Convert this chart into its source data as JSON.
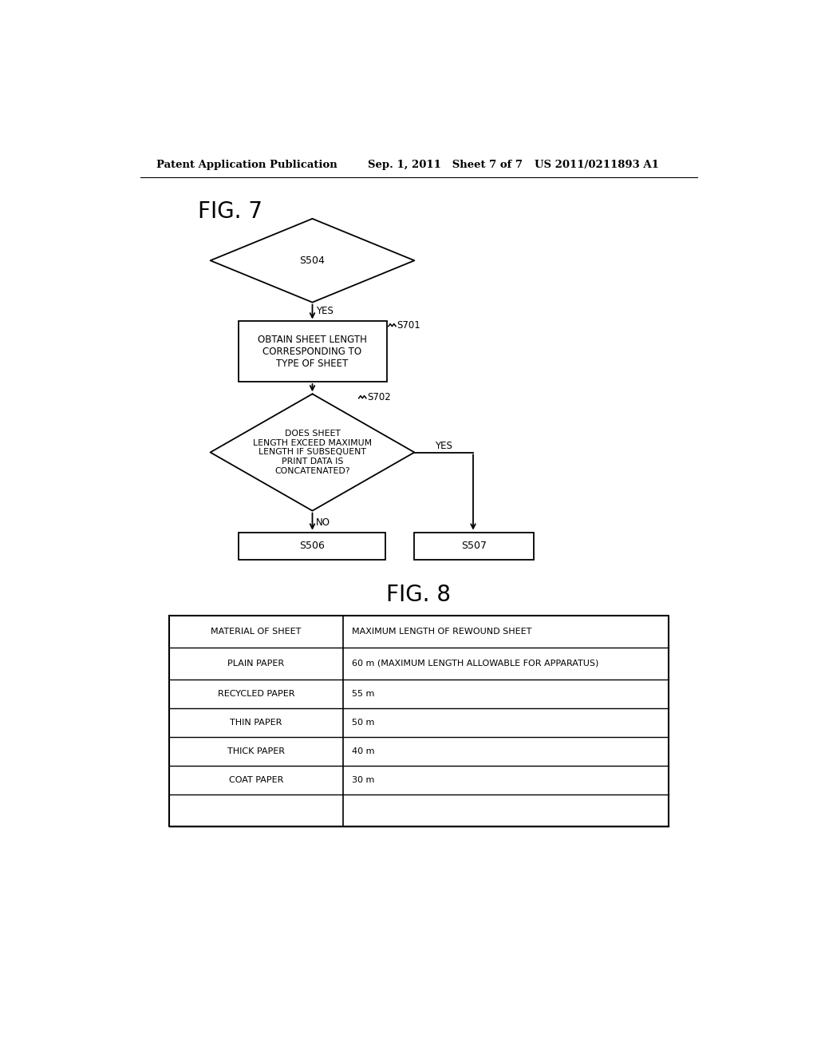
{
  "background_color": "#ffffff",
  "header_left": "Patent Application Publication",
  "header_mid": "Sep. 1, 2011   Sheet 7 of 7",
  "header_right": "US 2011/0211893 A1",
  "fig7_label": "FIG. 7",
  "fig8_label": "FIG. 8",
  "diamond1_label": "S504",
  "rect1_label": "OBTAIN SHEET LENGTH\nCORRESPONDING TO\nTYPE OF SHEET",
  "rect1_step": "S701",
  "diamond2_label": "DOES SHEET\nLENGTH EXCEED MAXIMUM\nLENGTH IF SUBSEQUENT\nPRINT DATA IS\nCONCATENATED?",
  "diamond2_step": "S702",
  "rect2_label": "S506",
  "rect3_label": "S507",
  "yes_label1": "YES",
  "yes_label2": "YES",
  "no_label": "NO",
  "table_col1_header": "MATERIAL OF SHEET",
  "table_col2_header": "MAXIMUM LENGTH OF REWOUND SHEET",
  "table_rows": [
    [
      "PLAIN PAPER",
      "60 m (MAXIMUM LENGTH ALLOWABLE FOR APPARATUS)"
    ],
    [
      "RECYCLED PAPER",
      "55 m"
    ],
    [
      "THIN PAPER",
      "50 m"
    ],
    [
      "THICK PAPER",
      "40 m"
    ],
    [
      "COAT PAPER",
      "30 m"
    ],
    [
      "",
      ""
    ]
  ],
  "line_color": "#000000",
  "text_color": "#000000"
}
